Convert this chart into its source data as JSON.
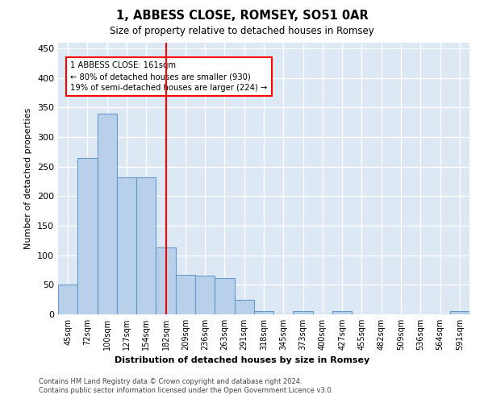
{
  "title": "1, ABBESS CLOSE, ROMSEY, SO51 0AR",
  "subtitle": "Size of property relative to detached houses in Romsey",
  "xlabel": "Distribution of detached houses by size in Romsey",
  "ylabel": "Number of detached properties",
  "bar_labels": [
    "45sqm",
    "72sqm",
    "100sqm",
    "127sqm",
    "154sqm",
    "182sqm",
    "209sqm",
    "236sqm",
    "263sqm",
    "291sqm",
    "318sqm",
    "345sqm",
    "373sqm",
    "400sqm",
    "427sqm",
    "455sqm",
    "482sqm",
    "509sqm",
    "536sqm",
    "564sqm",
    "591sqm"
  ],
  "bar_values": [
    50,
    265,
    340,
    232,
    232,
    113,
    67,
    65,
    62,
    25,
    6,
    0,
    5,
    0,
    5,
    0,
    0,
    0,
    0,
    0,
    5
  ],
  "bar_color": "#b8d0ea",
  "bar_edgecolor": "#6699cc",
  "reference_line_x": 5.0,
  "annotation_title": "1 ABBESS CLOSE: 161sqm",
  "annotation_line1": "← 80% of detached houses are smaller (930)",
  "annotation_line2": "19% of semi-detached houses are larger (224) →",
  "ylim": [
    0,
    460
  ],
  "yticks": [
    0,
    50,
    100,
    150,
    200,
    250,
    300,
    350,
    400,
    450
  ],
  "bg_color": "#dde8f5",
  "grid_color": "#ffffff",
  "footnote1": "Contains HM Land Registry data © Crown copyright and database right 2024.",
  "footnote2": "Contains public sector information licensed under the Open Government Licence v3.0."
}
